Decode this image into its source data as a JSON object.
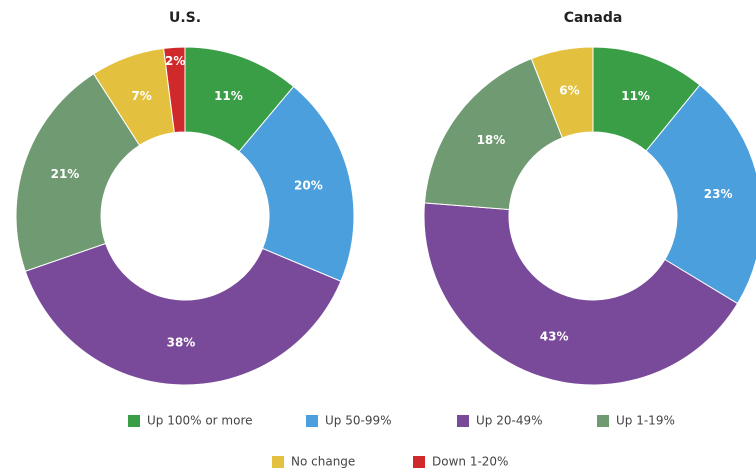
{
  "chart_data": [
    {
      "type": "pie",
      "title": "U.S.",
      "categories": [
        "Up 100% or more",
        "Up 50-99%",
        "Up 20-49%",
        "Up 1-19%",
        "No change",
        "Down 1-20%"
      ],
      "values": [
        11,
        20,
        38,
        21,
        7,
        2
      ],
      "value_labels": [
        "11%",
        "20%",
        "38%",
        "21%",
        "7%",
        "2%"
      ],
      "colors": [
        "#3a9e46",
        "#4a9fdc",
        "#7a4a9a",
        "#6f9a72",
        "#e3c13f",
        "#d0292b"
      ]
    },
    {
      "type": "pie",
      "title": "Canada",
      "categories": [
        "Up 100% or more",
        "Up 50-99%",
        "Up 20-49%",
        "Up 1-19%",
        "No change"
      ],
      "values": [
        11,
        23,
        43,
        18,
        6
      ],
      "value_labels": [
        "11%",
        "23%",
        "43%",
        "18%",
        "6%"
      ],
      "colors": [
        "#3a9e46",
        "#4a9fdc",
        "#7a4a9a",
        "#6f9a72",
        "#e3c13f"
      ]
    }
  ]
}
